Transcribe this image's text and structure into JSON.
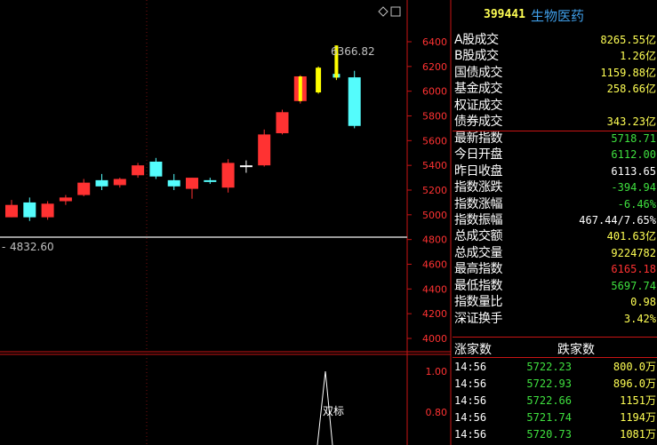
{
  "colors": {
    "up": "#ff3232",
    "down": "#54fcfc",
    "yellow": "#ffff00",
    "green": "#3fe03f",
    "red": "#ff3232",
    "white": "#ffffff",
    "axis": "#c81414"
  },
  "header": {
    "code": "399441",
    "name": "生物医药"
  },
  "price_axis": [
    "6400",
    "6200",
    "6000",
    "5800",
    "5600",
    "5400",
    "5200",
    "5000",
    "4800",
    "4600",
    "4400",
    "4200",
    "4000"
  ],
  "volume_axis": [
    "1.00",
    "0.80"
  ],
  "annotations": {
    "high_label": "6366.82",
    "low_label": "4832.60",
    "marker_label": "双标"
  },
  "stats": [
    {
      "label": "A股成交",
      "value": "8265.55",
      "unit": "亿",
      "color": "#ffff54"
    },
    {
      "label": "B股成交",
      "value": "1.26",
      "unit": "亿",
      "color": "#ffff54"
    },
    {
      "label": "国债成交",
      "value": "1159.88",
      "unit": "亿",
      "color": "#ffff54"
    },
    {
      "label": "基金成交",
      "value": "258.66",
      "unit": "亿",
      "color": "#ffff54"
    },
    {
      "label": "权证成交",
      "value": "",
      "unit": "",
      "color": "#ffff54"
    },
    {
      "label": "债券成交",
      "value": "343.23",
      "unit": "亿",
      "color": "#ffff54"
    },
    {
      "label": "最新指数",
      "value": "5718.71",
      "unit": "",
      "color": "#3fe03f"
    },
    {
      "label": "今日开盘",
      "value": "6112.00",
      "unit": "",
      "color": "#3fe03f"
    },
    {
      "label": "昨日收盘",
      "value": "6113.65",
      "unit": "",
      "color": "#ffffff"
    },
    {
      "label": "指数涨跌",
      "value": "-394.94",
      "unit": "",
      "color": "#3fe03f"
    },
    {
      "label": "指数涨幅",
      "value": "-6.46%",
      "unit": "",
      "color": "#3fe03f"
    },
    {
      "label": "指数振幅",
      "value": "467.44/7.65%",
      "unit": "",
      "color": "#ffffff"
    },
    {
      "label": "总成交额",
      "value": "401.63",
      "unit": "亿",
      "color": "#ffff54"
    },
    {
      "label": "总成交量",
      "value": "9224782",
      "unit": "",
      "color": "#ffff54"
    },
    {
      "label": "最高指数",
      "value": "6165.18",
      "unit": "",
      "color": "#ff3232"
    },
    {
      "label": "最低指数",
      "value": "5697.74",
      "unit": "",
      "color": "#3fe03f"
    },
    {
      "label": "指数量比",
      "value": "0.98",
      "unit": "",
      "color": "#ffff54"
    },
    {
      "label": "深证换手",
      "value": "3.42%",
      "unit": "",
      "color": "#ffff54"
    }
  ],
  "breadth": {
    "up_label": "涨家数",
    "down_label": "跌家数"
  },
  "ticks": [
    {
      "time": "14:56",
      "price": "5722.23",
      "vol": "800.0万"
    },
    {
      "time": "14:56",
      "price": "5722.93",
      "vol": "896.0万"
    },
    {
      "time": "14:56",
      "price": "5722.66",
      "vol": "1151万"
    },
    {
      "time": "14:56",
      "price": "5721.74",
      "vol": "1194万"
    },
    {
      "time": "14:56",
      "price": "5720.73",
      "vol": "1081万"
    }
  ],
  "chart_data": {
    "type": "candlestick",
    "ylim": [
      3950,
      6500
    ],
    "candles": [
      {
        "o": 5080,
        "h": 5120,
        "l": 4980,
        "c": 4980,
        "color": "up"
      },
      {
        "o": 5100,
        "h": 5140,
        "l": 4950,
        "c": 4980,
        "color": "down"
      },
      {
        "o": 4980,
        "h": 5110,
        "l": 4960,
        "c": 5090,
        "color": "up"
      },
      {
        "o": 5110,
        "h": 5160,
        "l": 5080,
        "c": 5140,
        "color": "up"
      },
      {
        "o": 5160,
        "h": 5290,
        "l": 5150,
        "c": 5260,
        "color": "up"
      },
      {
        "o": 5280,
        "h": 5330,
        "l": 5200,
        "c": 5230,
        "color": "down"
      },
      {
        "o": 5240,
        "h": 5300,
        "l": 5220,
        "c": 5290,
        "color": "up"
      },
      {
        "o": 5320,
        "h": 5420,
        "l": 5300,
        "c": 5400,
        "color": "up"
      },
      {
        "o": 5430,
        "h": 5460,
        "l": 5290,
        "c": 5310,
        "color": "down"
      },
      {
        "o": 5280,
        "h": 5330,
        "l": 5200,
        "c": 5230,
        "color": "down"
      },
      {
        "o": 5210,
        "h": 5300,
        "l": 5130,
        "c": 5300,
        "color": "up"
      },
      {
        "o": 5280,
        "h": 5300,
        "l": 5250,
        "c": 5270,
        "color": "down"
      },
      {
        "o": 5220,
        "h": 5450,
        "l": 5180,
        "c": 5420,
        "color": "up"
      },
      {
        "o": 5390,
        "h": 5440,
        "l": 5340,
        "c": 5400,
        "color": "doji"
      },
      {
        "o": 5400,
        "h": 5690,
        "l": 5390,
        "c": 5650,
        "color": "up"
      },
      {
        "o": 5660,
        "h": 5850,
        "l": 5650,
        "c": 5830,
        "color": "up"
      },
      {
        "o": 5920,
        "h": 6130,
        "l": 5900,
        "c": 6120,
        "color": "upyellow"
      },
      {
        "o": 5990,
        "h": 6200,
        "l": 5980,
        "c": 6190,
        "color": "yellow"
      },
      {
        "o": 6110,
        "h": 6370,
        "l": 6090,
        "c": 6140,
        "color": "yellowcyan"
      },
      {
        "o": 6112,
        "h": 6165,
        "l": 5700,
        "c": 5719,
        "color": "down"
      }
    ]
  }
}
